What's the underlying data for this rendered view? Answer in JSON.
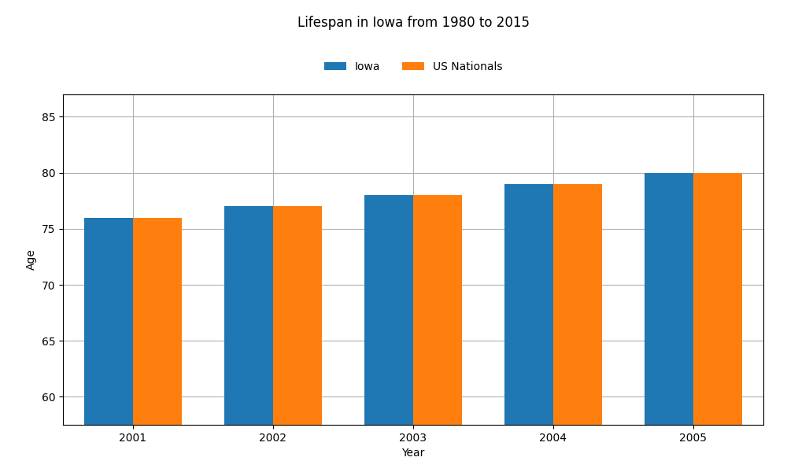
{
  "chart_data": {
    "type": "bar",
    "title": "Lifespan in Iowa from 1980 to 2015",
    "x_label": "Year",
    "y_label": "Age",
    "categories": [
      "2001",
      "2002",
      "2003",
      "2004",
      "2005"
    ],
    "series": [
      {
        "name": "Iowa",
        "values": [
          76,
          77,
          78,
          79,
          80
        ]
      },
      {
        "name": "US Nationals",
        "values": [
          76,
          77,
          78,
          79,
          80
        ]
      }
    ],
    "ylim": [
      57.5,
      87
    ],
    "yticks": [
      60,
      65,
      70,
      75,
      80,
      85
    ],
    "grid": true,
    "legend": "upper center"
  }
}
